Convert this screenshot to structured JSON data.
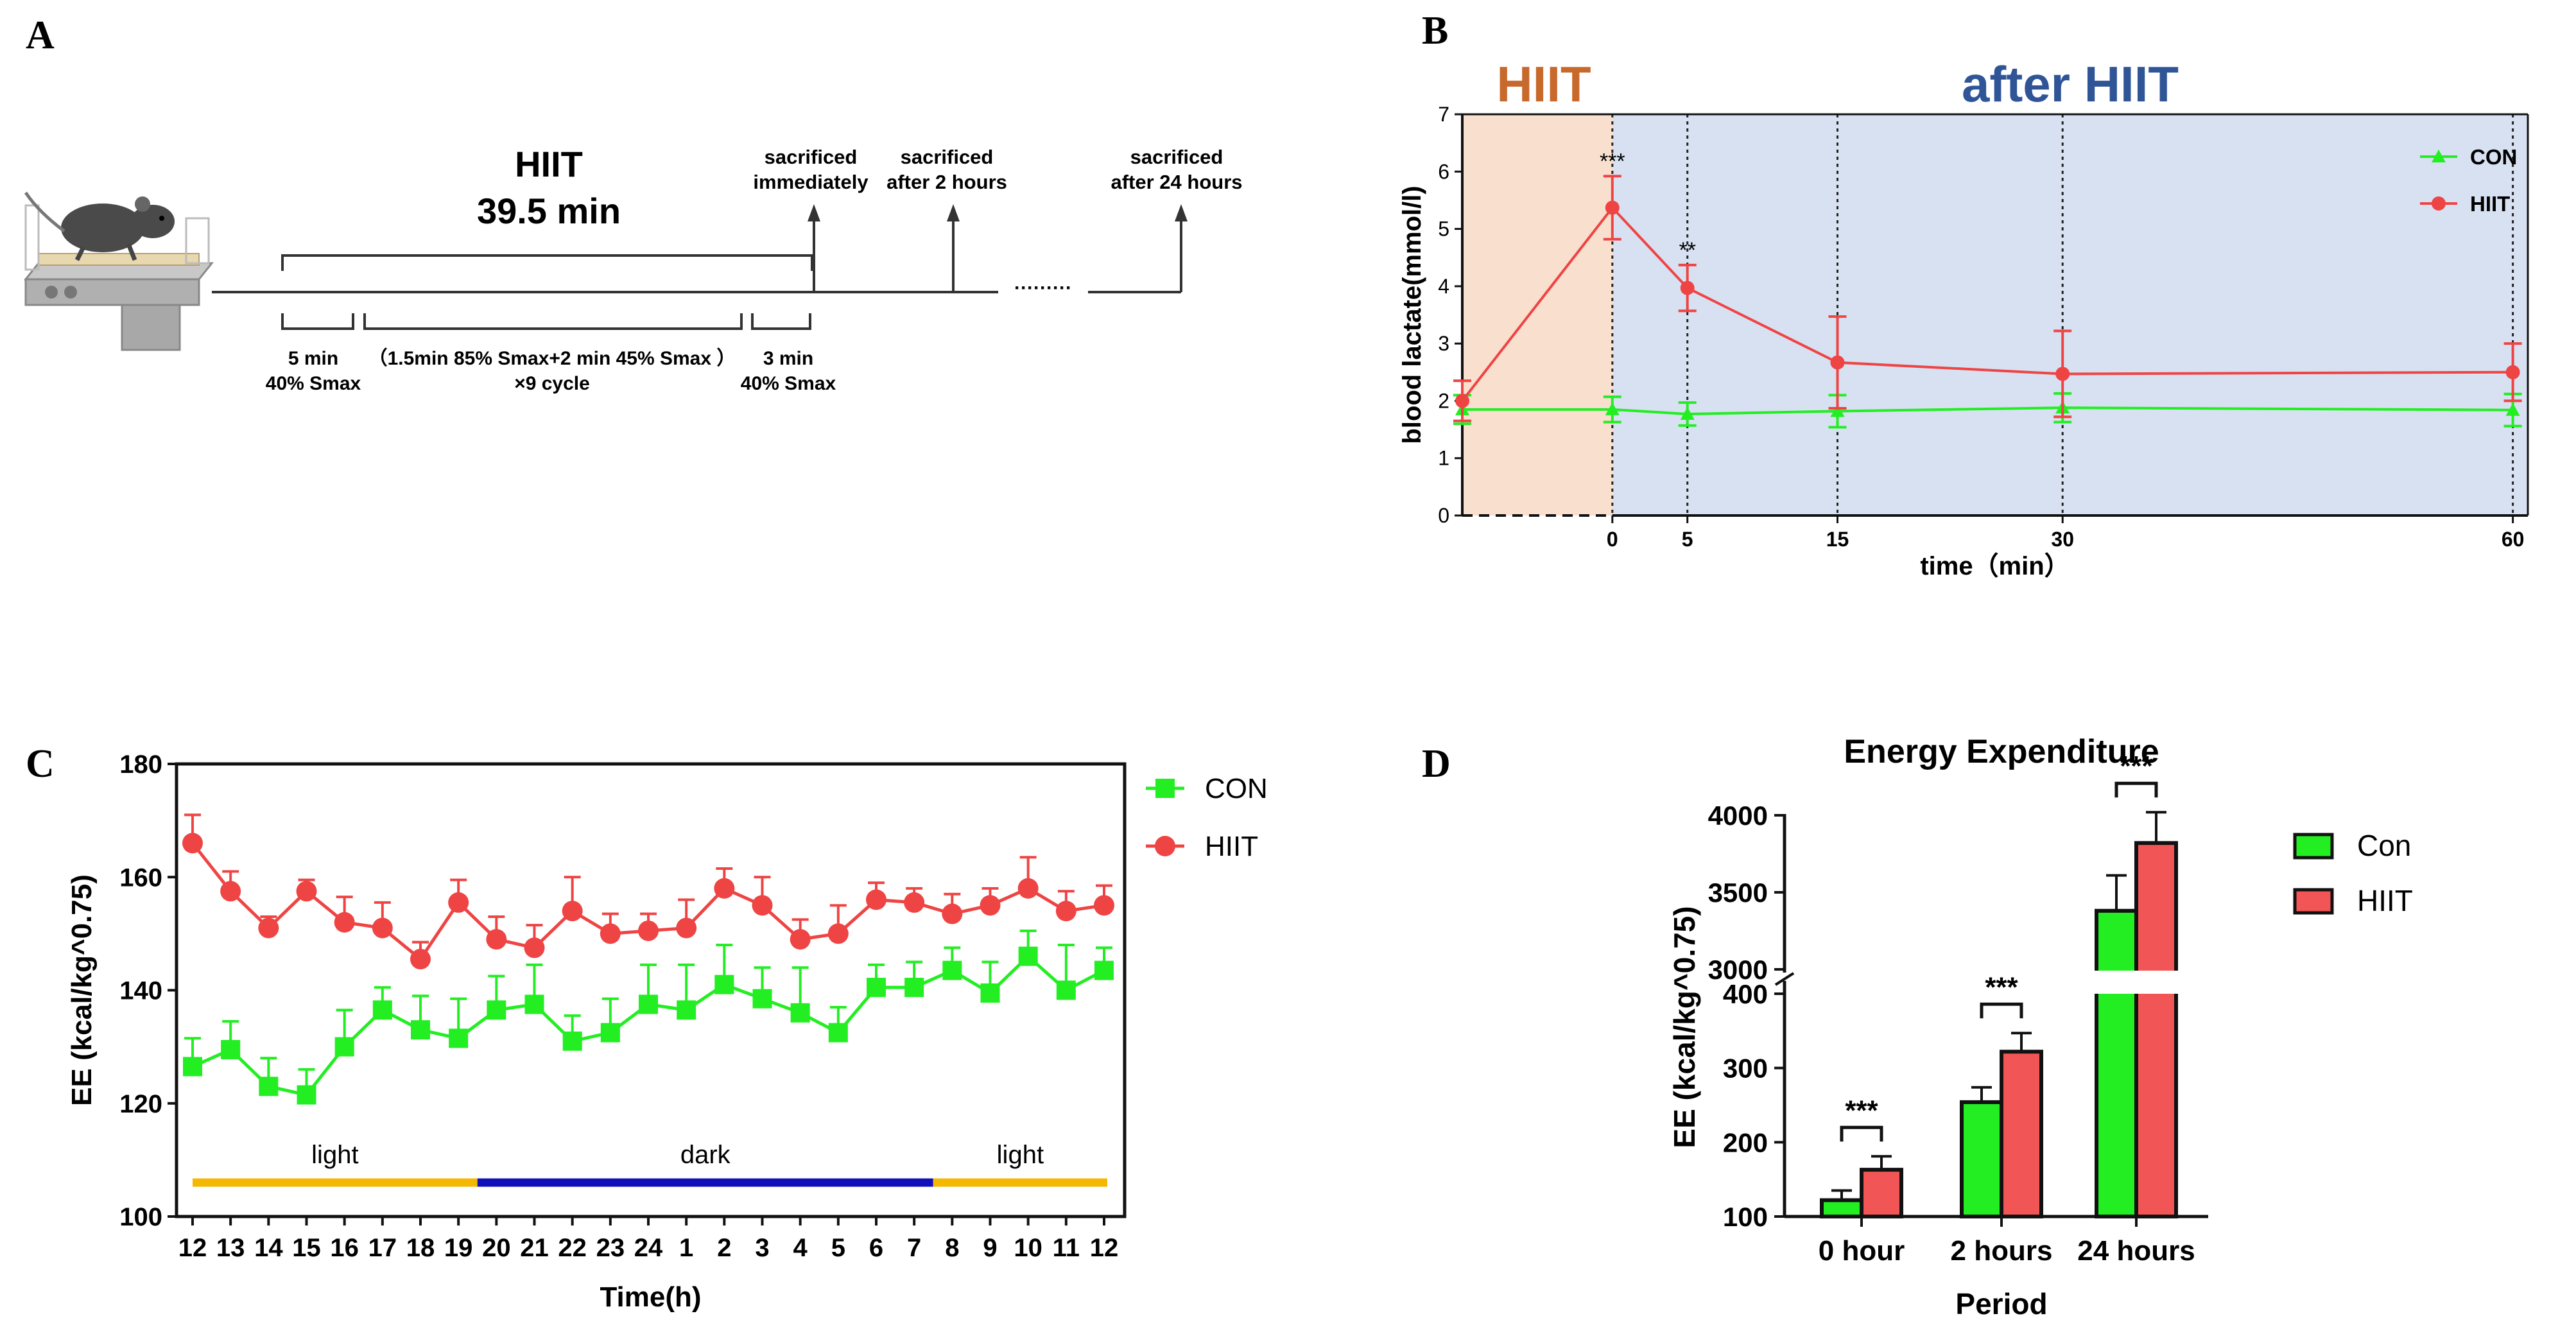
{
  "panels": {
    "A": {
      "label": "A",
      "title_line1": "HIIT",
      "title_line2": "39.5 min",
      "events": [
        {
          "line1": "sacrificed",
          "line2": "immediately"
        },
        {
          "line1": "sacrificed",
          "line2": "after 2 hours"
        },
        {
          "line1": "sacrificed",
          "line2": "after 24 hours"
        }
      ],
      "segments": [
        {
          "line1": "5 min",
          "line2": "40% Smax"
        },
        {
          "line1": "（1.5min 85% Smax+2 min 45% Smax ）",
          "line2": "×9 cycle"
        },
        {
          "line1": "3 min",
          "line2": "40% Smax"
        }
      ],
      "ellipsis": "·········"
    },
    "B": {
      "label": "B",
      "phase_during": "HIIT",
      "phase_after": "after HIIT"
    },
    "C": {
      "label": "C"
    },
    "D": {
      "label": "D"
    }
  },
  "colors": {
    "con_green": "#22ee22",
    "hiit_red": "#ef4444",
    "bar_green": "#22ee22",
    "bar_red": "#f25555",
    "phase_during_bg": "#f9dfce",
    "phase_after_bg": "#d7e1f2",
    "phase_during_text": "#c8692c",
    "phase_after_text": "#2f5597",
    "light_bar": "#f5b800",
    "dark_bar": "#1010b8"
  },
  "chart_data": [
    {
      "panel": "B",
      "type": "line",
      "title": "",
      "xlabel": "time（min）",
      "ylabel": "blood lactate(mmol/l)",
      "x": [
        -10,
        0,
        5,
        15,
        30,
        60
      ],
      "xticks": [
        0,
        5,
        15,
        30,
        60
      ],
      "ylim": [
        0,
        7
      ],
      "yticks": [
        0,
        1,
        2,
        3,
        4,
        5,
        6,
        7
      ],
      "series": [
        {
          "name": "CON",
          "values": [
            1.85,
            1.85,
            1.77,
            1.82,
            1.88,
            1.84
          ],
          "errors": [
            0.25,
            0.22,
            0.2,
            0.28,
            0.25,
            0.28
          ]
        },
        {
          "name": "HIIT",
          "values": [
            2.0,
            5.37,
            3.97,
            2.67,
            2.47,
            2.5
          ],
          "errors": [
            0.35,
            0.55,
            0.4,
            0.8,
            0.75,
            0.5
          ]
        }
      ],
      "annotations": [
        {
          "x": 0,
          "text": "***"
        },
        {
          "x": 5,
          "text": "**"
        }
      ],
      "legend": "top-right"
    },
    {
      "panel": "C",
      "type": "line",
      "title": "",
      "xlabel": "Time(h)",
      "ylabel": "EE (kcal/kg^0.75)",
      "categories": [
        "12",
        "13",
        "14",
        "15",
        "16",
        "17",
        "18",
        "19",
        "20",
        "21",
        "22",
        "23",
        "24",
        "1",
        "2",
        "3",
        "4",
        "5",
        "6",
        "7",
        "8",
        "9",
        "10",
        "11",
        "12"
      ],
      "ylim": [
        100,
        180
      ],
      "yticks": [
        100,
        120,
        140,
        160,
        180
      ],
      "series": [
        {
          "name": "CON",
          "values": [
            126.5,
            129.5,
            123,
            121.5,
            130,
            136.5,
            133,
            131.5,
            136.5,
            137.5,
            131,
            132.5,
            137.5,
            136.5,
            141,
            138.5,
            136,
            132.5,
            140.5,
            140.5,
            143.5,
            139.5,
            146,
            140,
            143.5
          ],
          "errors": [
            5,
            5,
            5,
            4.5,
            6.5,
            4,
            6,
            7,
            6,
            7,
            4.5,
            6,
            7,
            8,
            7,
            5.5,
            8,
            4.5,
            4,
            4.5,
            4,
            5.5,
            4.5,
            8,
            4
          ]
        },
        {
          "name": "HIIT",
          "values": [
            166,
            157.5,
            151,
            157.5,
            152,
            151,
            145.5,
            155.5,
            149,
            147.5,
            154,
            150,
            150.5,
            151,
            158,
            155,
            149,
            150,
            156,
            155.5,
            153.5,
            155,
            158,
            154,
            155
          ],
          "errors": [
            5,
            3.5,
            2,
            2,
            4.5,
            4.5,
            3,
            4,
            4,
            4,
            6,
            3.5,
            3,
            5,
            3.5,
            5,
            3.5,
            5,
            3,
            2.5,
            3.5,
            3,
            5.5,
            3.5,
            3.5
          ]
        }
      ],
      "periods": [
        {
          "label": "light",
          "from": "12",
          "to": "19"
        },
        {
          "label": "dark",
          "from": "20",
          "to": "7"
        },
        {
          "label": "light",
          "from": "8",
          "to": "12"
        }
      ],
      "legend": "right"
    },
    {
      "panel": "D",
      "type": "bar",
      "title": "Energy Expenditure",
      "xlabel": "Period",
      "ylabel": "EE (kcal/kg^0.75)",
      "categories": [
        "0 hour",
        "2 hours",
        "24 hours"
      ],
      "axis_break": {
        "lower_range": [
          100,
          400
        ],
        "upper_range": [
          3000,
          4000
        ]
      },
      "yticks": [
        100,
        200,
        300,
        400,
        3000,
        3500,
        4000
      ],
      "series": [
        {
          "name": "Con",
          "values": [
            122,
            254,
            3380
          ],
          "errors": [
            13,
            20,
            230
          ]
        },
        {
          "name": "HIIT",
          "values": [
            163,
            322,
            3820
          ],
          "errors": [
            18,
            25,
            200
          ]
        }
      ],
      "significance": [
        "***",
        "***",
        "***"
      ],
      "legend": "right"
    }
  ]
}
